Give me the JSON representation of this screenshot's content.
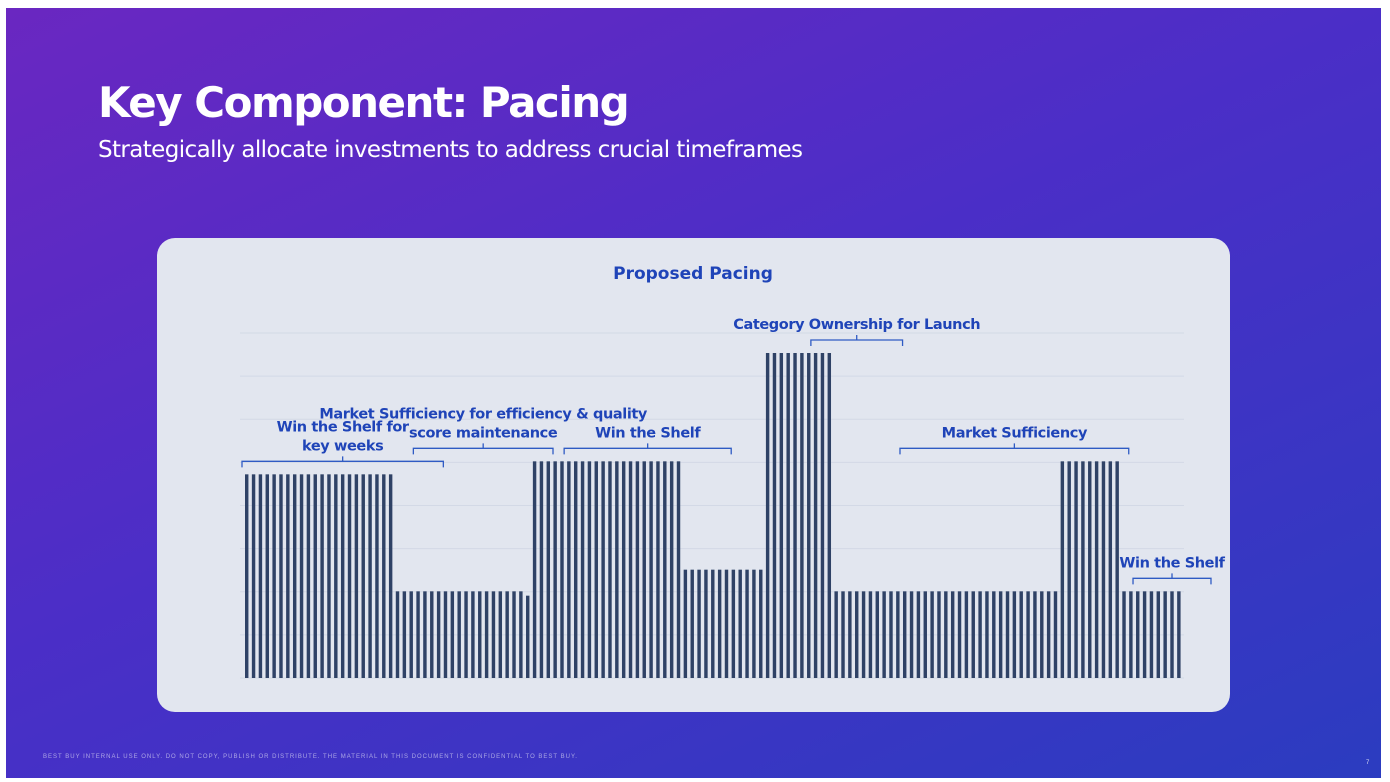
{
  "slide": {
    "title": "Key Component: Pacing",
    "subtitle": "Strategically allocate investments to address crucial timeframes",
    "footer": "BEST BUY INTERNAL USE ONLY. DO NOT COPY, PUBLISH OR DISTRIBUTE. THE MATERIAL IN THIS DOCUMENT IS CONFIDENTIAL TO BEST BUY.",
    "page_number": "7"
  },
  "colors": {
    "background_start": "#6a27c1",
    "background_end": "#2b3cc0",
    "panel": "#e2e6ef",
    "bar": "#2f4266",
    "annotation": "#1f44b8",
    "bracket": "#2f5bc4"
  },
  "chart_data": {
    "type": "bar",
    "title": "Proposed Pacing",
    "xlabel": "",
    "ylabel": "",
    "ylim": [
      0,
      7.5
    ],
    "grid": true,
    "legend": "none",
    "segments": [
      {
        "count": 22,
        "value": 4.7
      },
      {
        "count": 19,
        "value": 2.0
      },
      {
        "count": 1,
        "value": 1.9
      },
      {
        "count": 22,
        "value": 5.0
      },
      {
        "count": 12,
        "value": 2.5
      },
      {
        "count": 10,
        "value": 7.5
      },
      {
        "count": 33,
        "value": 2.0
      },
      {
        "count": 9,
        "value": 5.0
      },
      {
        "count": 9,
        "value": 2.0
      }
    ],
    "annotations": [
      {
        "label_lines": [
          "Win the Shelf for",
          "key weeks"
        ],
        "from_bar": 0,
        "to_bar": 28
      },
      {
        "label_lines": [
          "Market Sufficiency for efficiency & quality",
          "score maintenance"
        ],
        "from_bar": 25,
        "to_bar": 44
      },
      {
        "label_lines": [
          "Win the Shelf"
        ],
        "from_bar": 47,
        "to_bar": 70
      },
      {
        "label_lines": [
          "Category Ownership for Launch"
        ],
        "from_bar": 83,
        "to_bar": 95
      },
      {
        "label_lines": [
          "Market Sufficiency"
        ],
        "from_bar": 96,
        "to_bar": 128
      },
      {
        "label_lines": [
          "Win the Shelf"
        ],
        "from_bar": 130,
        "to_bar": 140
      }
    ]
  }
}
